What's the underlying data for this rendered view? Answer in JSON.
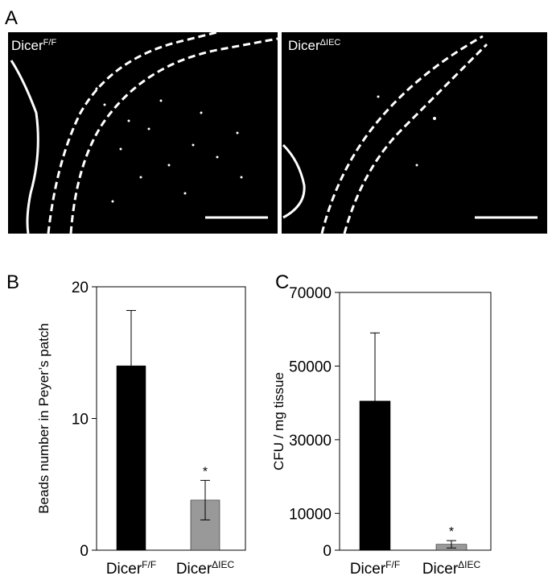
{
  "panel_labels": [
    "A",
    "B",
    "C"
  ],
  "images": [
    {
      "label": "Dicer",
      "sup": "F/F"
    },
    {
      "label": "Dicer",
      "sup": "ΔIEC"
    }
  ],
  "chart_data": [
    {
      "type": "bar",
      "ylabel": "Beads number in Peyer’s patch",
      "categories": [
        "Dicer",
        "Dicer"
      ],
      "category_superscripts": [
        "F/F",
        "ΔIEC"
      ],
      "values": [
        14,
        3.8
      ],
      "errors": [
        4.2,
        1.5
      ],
      "colors": [
        "#000000",
        "#999999"
      ],
      "significance": [
        null,
        "*"
      ],
      "ylim": [
        0,
        20
      ],
      "yticks": [
        0,
        10,
        20
      ]
    },
    {
      "type": "bar",
      "ylabel": "CFU / mg tissue",
      "categories": [
        "Dicer",
        "Dicer"
      ],
      "category_superscripts": [
        "F/F",
        "ΔIEC"
      ],
      "values": [
        40500,
        1600
      ],
      "errors": [
        18500,
        1000
      ],
      "colors": [
        "#000000",
        "#999999"
      ],
      "significance": [
        null,
        "*"
      ],
      "ylim": [
        0,
        70000
      ],
      "yticks": [
        0,
        10000,
        30000,
        50000,
        70000
      ]
    }
  ]
}
